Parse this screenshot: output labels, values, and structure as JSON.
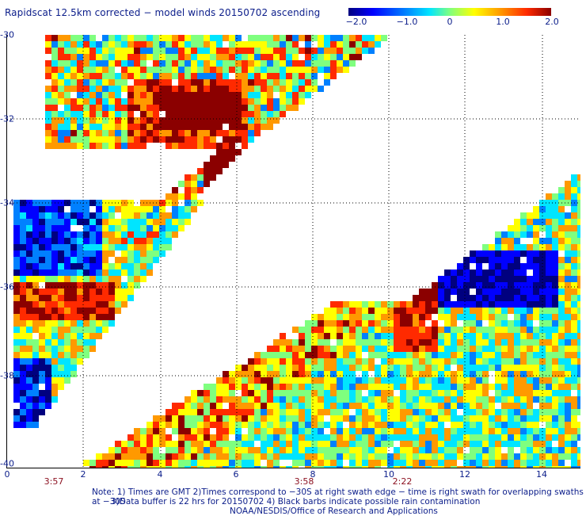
{
  "title": "Rapidscat 12.5km corrected − model winds 20150702 ascending",
  "colorbar": {
    "ticks": [
      "−2.0",
      "−1.0",
      "0",
      "1.0",
      "2.0"
    ],
    "range": [
      -2.0,
      2.0
    ],
    "colors": [
      "#00007f",
      "#0000ff",
      "#0080ff",
      "#00e5ff",
      "#7fff7f",
      "#ffff00",
      "#ff9900",
      "#ff2a00",
      "#8b0000"
    ]
  },
  "y_axis": {
    "ticks": [
      "-30",
      "-32",
      "-34",
      "-36",
      "-38",
      "-40"
    ]
  },
  "x_axis": {
    "ticks": [
      "0",
      "2",
      "4",
      "6",
      "8",
      "10",
      "12",
      "14"
    ]
  },
  "times": [
    "3:57",
    "3:58",
    "2:22"
  ],
  "notes": {
    "line1": "Note: 1) Times are GMT 2)Times correspond to −30S at right swath edge − time is right swath for overlapping swaths at −30S",
    "line2": "3)Data buffer is 22 hrs for 20150702 4) Black barbs indicate possible rain contamination",
    "line3": "NOAA/NESDIS/Office of Research and Applications"
  }
}
